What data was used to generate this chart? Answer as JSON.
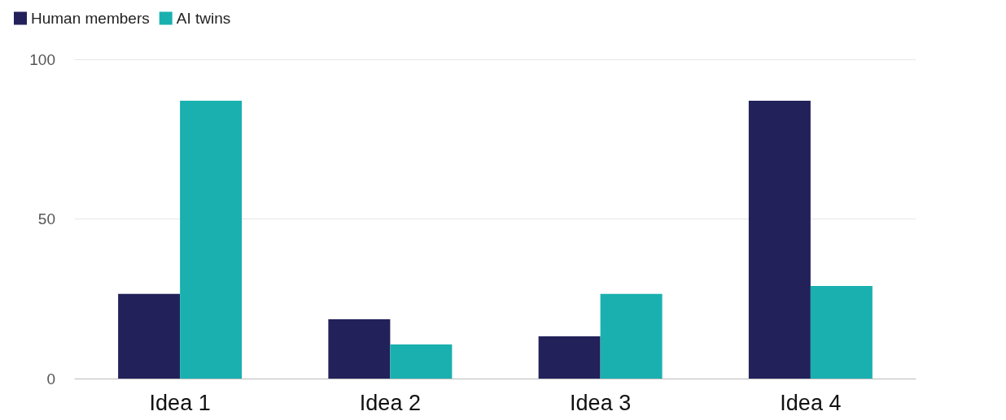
{
  "chart_data": {
    "type": "bar",
    "categories": [
      "Idea 1",
      "Idea 2",
      "Idea 3",
      "Idea 4"
    ],
    "series": [
      {
        "name": "Human members",
        "color": "#22215a",
        "values": [
          26.5,
          18.6,
          13.2,
          87
        ]
      },
      {
        "name": "AI twins",
        "color": "#1ab0b0",
        "values": [
          87,
          10.7,
          26.5,
          29
        ]
      }
    ],
    "ylim": [
      0,
      100
    ],
    "yticks": [
      0,
      50,
      100
    ],
    "grid": "y",
    "legend": "top left"
  }
}
